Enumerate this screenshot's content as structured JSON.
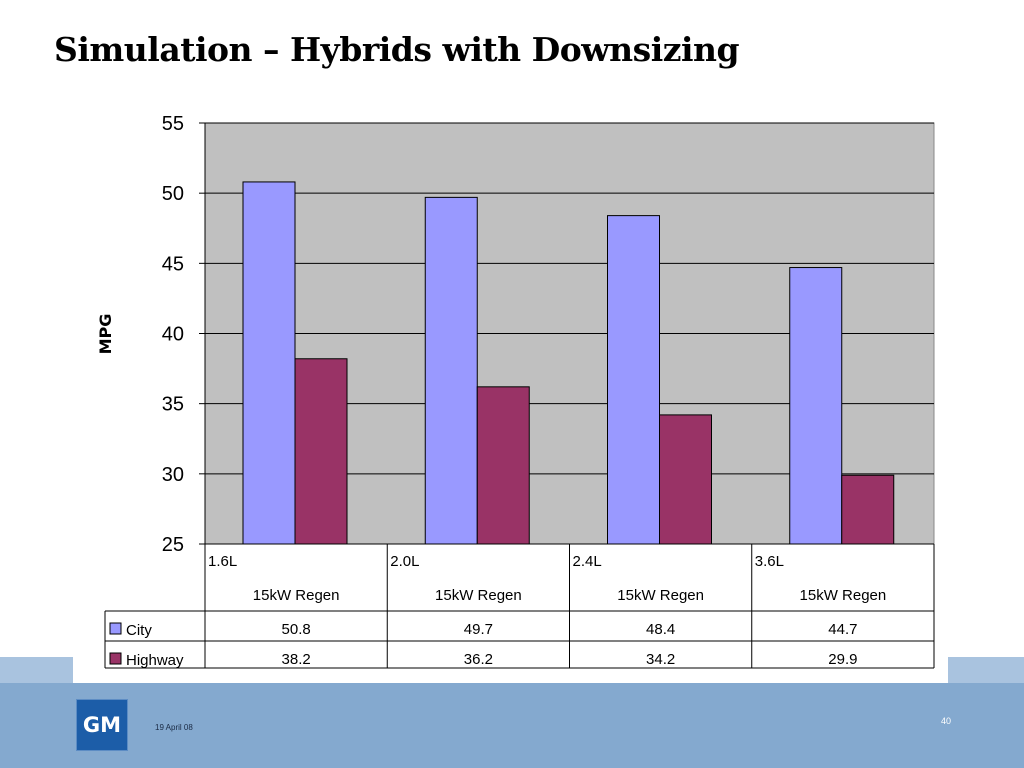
{
  "slide": {
    "title": "Simulation – Hybrids with Downsizing",
    "footer_date": "19 April 08",
    "page_number": "40",
    "logo_text": "GM"
  },
  "colors": {
    "city": "#9999ff",
    "highway": "#993366",
    "plot_background": "#c0c0c0",
    "footer": "#84a9cf"
  },
  "chart_data": {
    "type": "bar",
    "categories": [
      {
        "line1": "1.6L",
        "line2": "15kW Regen"
      },
      {
        "line1": "2.0L",
        "line2": "15kW Regen"
      },
      {
        "line1": "2.4L",
        "line2": "15kW Regen"
      },
      {
        "line1": "3.6L",
        "line2": "15kW Regen"
      }
    ],
    "series": [
      {
        "name": "City",
        "values": [
          50.8,
          49.7,
          48.4,
          44.7
        ],
        "display": [
          "50.8",
          "49.7",
          "48.4",
          "44.7"
        ]
      },
      {
        "name": "Highway",
        "values": [
          38.2,
          36.2,
          34.2,
          29.9
        ],
        "display": [
          "38.2",
          "36.2",
          "34.2",
          "29.9"
        ]
      }
    ],
    "ylabel": "MPG",
    "ylim": [
      25,
      55
    ],
    "yticks": [
      25,
      30,
      35,
      40,
      45,
      50,
      55
    ],
    "grid": true,
    "legend": "data-table"
  }
}
